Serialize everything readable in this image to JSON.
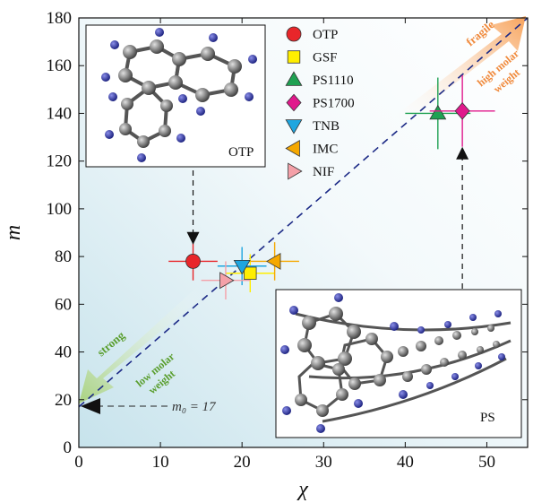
{
  "chart_data": {
    "type": "scatter",
    "xlabel": "χ",
    "ylabel": "m",
    "xlim": [
      0,
      55
    ],
    "ylim": [
      0,
      180
    ],
    "x_ticks": [
      0,
      10,
      20,
      30,
      40,
      50
    ],
    "y_ticks": [
      0,
      20,
      40,
      60,
      80,
      100,
      120,
      140,
      160,
      180
    ],
    "legend_position": "top-center",
    "series": [
      {
        "name": "OTP",
        "x": 14,
        "y": 78,
        "xerr": 3,
        "yerr": 8,
        "marker": "circle",
        "color": "#e8262a"
      },
      {
        "name": "GSF",
        "x": 21,
        "y": 73,
        "xerr": 3,
        "yerr": 8,
        "marker": "square",
        "color": "#ffee00"
      },
      {
        "name": "PS1110",
        "x": 44,
        "y": 140,
        "xerr": 4,
        "yerr": 15,
        "marker": "triangle-up",
        "color": "#1fa152"
      },
      {
        "name": "PS1700",
        "x": 47,
        "y": 141,
        "xerr": 4,
        "yerr": 15,
        "marker": "diamond",
        "color": "#e0198c"
      },
      {
        "name": "TNB",
        "x": 20,
        "y": 76,
        "xerr": 3,
        "yerr": 8,
        "marker": "triangle-down",
        "color": "#1ea6e0"
      },
      {
        "name": "IMC",
        "x": 24,
        "y": 78,
        "xerr": 3,
        "yerr": 8,
        "marker": "triangle-left",
        "color": "#f5a800"
      },
      {
        "name": "NIF",
        "x": 18,
        "y": 70,
        "xerr": 3,
        "yerr": 8,
        "marker": "triangle-right",
        "color": "#f4a0a8"
      }
    ],
    "reference_line": {
      "x": [
        0,
        55
      ],
      "y": [
        17,
        180
      ],
      "style": "dashed",
      "color": "#1c2a86"
    },
    "annotations": {
      "m0_label": "m₀ = 17",
      "fragile": "fragile",
      "high_molar_1": "high molar",
      "high_molar_2": "weight",
      "strong": "strong",
      "low_molar_1": "low molar",
      "low_molar_2": "weight"
    },
    "insets": [
      {
        "label": "OTP",
        "position": "top-left",
        "arrow_to": {
          "x": 14,
          "y": 85
        }
      },
      {
        "label": "PS",
        "position": "bottom-right",
        "arrow_to": {
          "x": 47,
          "y": 126
        }
      }
    ]
  }
}
